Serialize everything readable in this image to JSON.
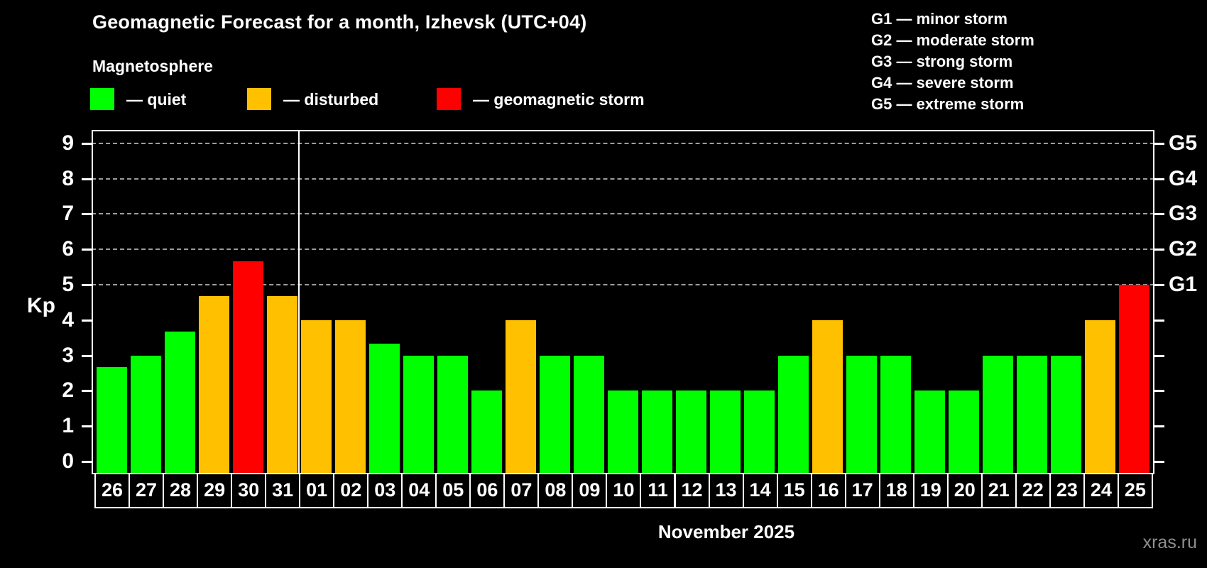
{
  "header": {
    "title": "Geomagnetic Forecast for a month, Izhevsk (UTC+04)",
    "subtitle": "Magnetosphere"
  },
  "legend": {
    "items": [
      {
        "name": "quiet",
        "label": "— quiet",
        "color": "#00ff00"
      },
      {
        "name": "disturbed",
        "label": "— disturbed",
        "color": "#ffc000"
      },
      {
        "name": "geomagnetic-storm",
        "label": "— geomagnetic storm",
        "color": "#ff0000"
      }
    ]
  },
  "g_legend": {
    "items": [
      "G1 — minor storm",
      "G2 — moderate storm",
      "G3 — strong storm",
      "G4 — severe storm",
      "G5 — extreme storm"
    ]
  },
  "watermark": "xras.ru",
  "chart_data": {
    "type": "bar",
    "title": "Geomagnetic Forecast for a month, Izhevsk (UTC+04)",
    "subtitle": "Magnetosphere",
    "ylabel": "Kp",
    "xlabel": "November 2025",
    "ylim": [
      0,
      9
    ],
    "yticks": [
      0,
      1,
      2,
      3,
      4,
      5,
      6,
      7,
      8,
      9
    ],
    "gridlines_at": [
      5,
      6,
      7,
      8,
      9
    ],
    "grid": "dashed horizontal at storm levels only",
    "legend_position": "top",
    "right_axis_labels": [
      {
        "kp": 5,
        "label": "G1"
      },
      {
        "kp": 6,
        "label": "G2"
      },
      {
        "kp": 7,
        "label": "G3"
      },
      {
        "kp": 8,
        "label": "G4"
      },
      {
        "kp": 9,
        "label": "G5"
      }
    ],
    "month_separator_after_index": 5,
    "categories": [
      "26",
      "27",
      "28",
      "29",
      "30",
      "31",
      "01",
      "02",
      "03",
      "04",
      "05",
      "06",
      "07",
      "08",
      "09",
      "10",
      "11",
      "12",
      "13",
      "14",
      "15",
      "16",
      "17",
      "18",
      "19",
      "20",
      "21",
      "22",
      "23",
      "24",
      "25"
    ],
    "values": [
      2.67,
      3,
      3.67,
      4.67,
      5.67,
      4.67,
      4,
      4,
      3.33,
      3,
      3,
      2,
      4,
      3,
      3,
      2,
      2,
      2,
      2,
      2,
      3,
      4,
      3,
      3,
      2,
      2,
      3,
      3,
      3,
      4,
      5
    ],
    "statuses": [
      "quiet",
      "quiet",
      "quiet",
      "disturbed",
      "storm",
      "disturbed",
      "disturbed",
      "disturbed",
      "quiet",
      "quiet",
      "quiet",
      "quiet",
      "disturbed",
      "quiet",
      "quiet",
      "quiet",
      "quiet",
      "quiet",
      "quiet",
      "quiet",
      "quiet",
      "disturbed",
      "quiet",
      "quiet",
      "quiet",
      "quiet",
      "quiet",
      "quiet",
      "quiet",
      "disturbed",
      "storm"
    ],
    "colors": {
      "quiet": "#00ff00",
      "disturbed": "#ffc000",
      "storm": "#ff0000"
    }
  }
}
